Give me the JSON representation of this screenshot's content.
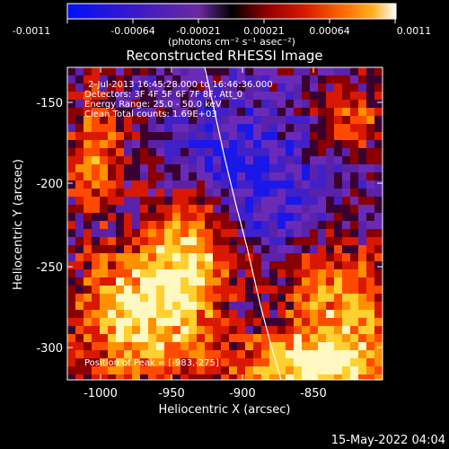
{
  "colorbar": {
    "tick_labels": [
      "-0.0011",
      "-0.00064",
      "-0.00021",
      "0.00021",
      "0.00064",
      "0.0011"
    ],
    "units": "(photons cm⁻² s⁻¹ asec⁻²)",
    "colors": [
      "#0010ff",
      "#3a18c8",
      "#6a2aa0",
      "#000000",
      "#8a0000",
      "#d81800",
      "#ff6a00",
      "#ffb020",
      "#ffffff"
    ]
  },
  "title": "Reconstructed RHESSI Image",
  "info": {
    "time_range": "2-Jul-2013 16:45:28.000 to 16:46:36.000",
    "detectors": "Detectors: 3F 4F 5F 6F 7F 8F, Att_0",
    "energy": "Energy Range: 25.0 - 50.0 keV",
    "clean": "Clean     Total counts: 1.69E+03"
  },
  "peak_label": "Position of Peak = [-983,-275]",
  "axes": {
    "x_label": "Heliocentric X (arcsec)",
    "y_label": "Heliocentric Y (arcsec)",
    "x_ticks": [
      "-1000",
      "-950",
      "-900",
      "-850"
    ],
    "y_ticks": [
      "-150",
      "-200",
      "-250",
      "-300"
    ]
  },
  "footer_date": "15-May-2022 04:04"
}
